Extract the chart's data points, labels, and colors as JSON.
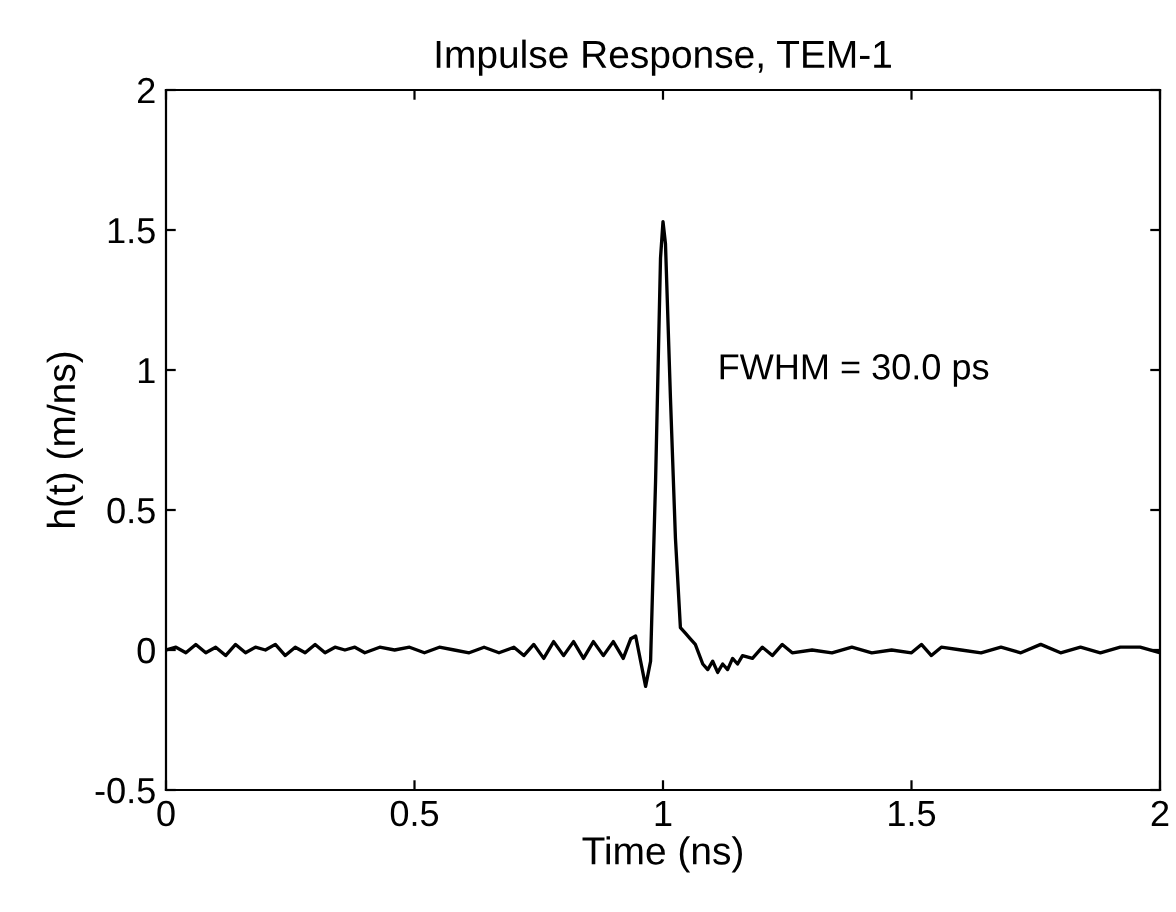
{
  "chart_data": {
    "type": "line",
    "title": "Impulse Response, TEM-1",
    "xlabel": "Time (ns)",
    "ylabel": "h(t) (m/ns)",
    "series": [
      {
        "color": "#000000",
        "x": [
          0,
          0.02,
          0.04,
          0.06,
          0.08,
          0.1,
          0.12,
          0.14,
          0.16,
          0.18,
          0.2,
          0.22,
          0.24,
          0.26,
          0.28,
          0.3,
          0.32,
          0.34,
          0.36,
          0.38,
          0.4,
          0.43,
          0.46,
          0.49,
          0.52,
          0.55,
          0.58,
          0.61,
          0.64,
          0.67,
          0.7,
          0.72,
          0.74,
          0.76,
          0.78,
          0.8,
          0.82,
          0.84,
          0.86,
          0.88,
          0.9,
          0.92,
          0.935,
          0.945,
          0.955,
          0.965,
          0.975,
          0.985,
          0.995,
          1.0,
          1.005,
          1.015,
          1.025,
          1.035,
          1.045,
          1.055,
          1.065,
          1.08,
          1.09,
          1.1,
          1.11,
          1.12,
          1.13,
          1.14,
          1.15,
          1.16,
          1.18,
          1.2,
          1.22,
          1.24,
          1.26,
          1.3,
          1.34,
          1.38,
          1.42,
          1.46,
          1.5,
          1.52,
          1.54,
          1.56,
          1.6,
          1.64,
          1.68,
          1.72,
          1.76,
          1.8,
          1.84,
          1.88,
          1.92,
          1.96,
          2.0
        ],
        "values": [
          0,
          0.01,
          -0.01,
          0.02,
          -0.01,
          0.01,
          -0.02,
          0.02,
          -0.01,
          0.01,
          0,
          0.02,
          -0.02,
          0.01,
          -0.01,
          0.02,
          -0.01,
          0.01,
          0,
          0.01,
          -0.01,
          0.01,
          0,
          0.01,
          -0.01,
          0.01,
          0,
          -0.01,
          0.01,
          -0.01,
          0.01,
          -0.02,
          0.02,
          -0.03,
          0.03,
          -0.02,
          0.03,
          -0.03,
          0.03,
          -0.02,
          0.03,
          -0.03,
          0.04,
          0.05,
          -0.04,
          -0.13,
          -0.04,
          0.6,
          1.4,
          1.53,
          1.45,
          0.9,
          0.4,
          0.08,
          0.06,
          0.04,
          0.02,
          -0.05,
          -0.07,
          -0.04,
          -0.08,
          -0.05,
          -0.07,
          -0.03,
          -0.05,
          -0.02,
          -0.03,
          0.01,
          -0.02,
          0.02,
          -0.01,
          0,
          -0.01,
          0.01,
          -0.01,
          0,
          -0.01,
          0.02,
          -0.02,
          0.01,
          0,
          -0.01,
          0.01,
          -0.01,
          0.02,
          -0.01,
          0.01,
          -0.01,
          0.01,
          0.01,
          -0.01
        ]
      }
    ],
    "xlim": [
      0,
      2
    ],
    "ylim": [
      -0.5,
      2
    ],
    "xticks": [
      0,
      0.5,
      1,
      1.5,
      2
    ],
    "yticks": [
      -0.5,
      0,
      0.5,
      1,
      1.5,
      2
    ],
    "grid": false,
    "legend": false,
    "annotations": [
      "FWHM = 30.0 ps"
    ]
  }
}
